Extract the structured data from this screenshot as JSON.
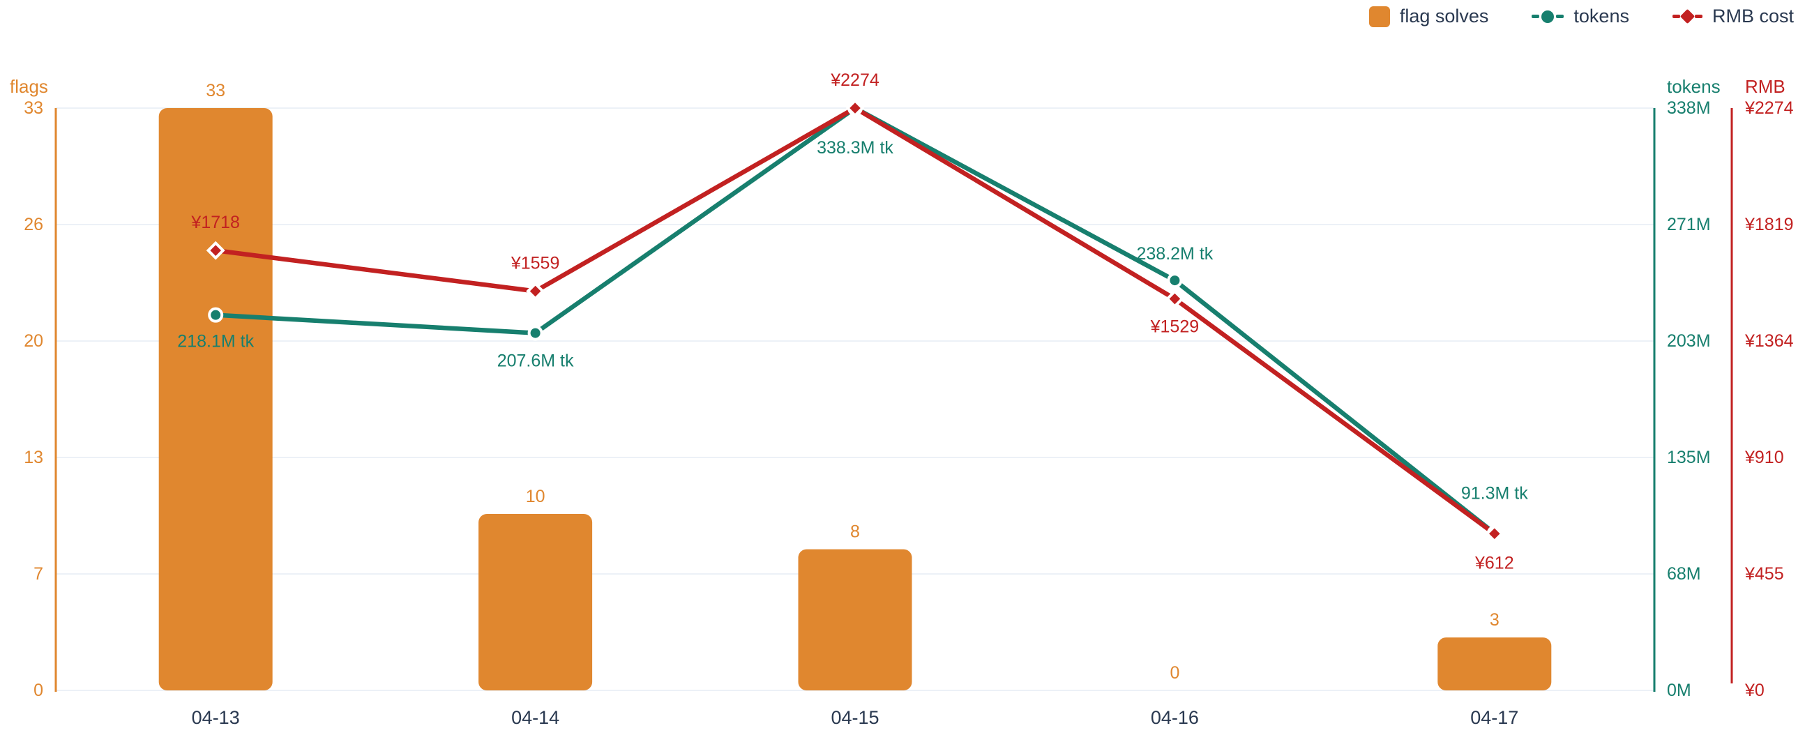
{
  "legend": {
    "items": [
      {
        "label": "flag solves",
        "icon": "bar-swatch-icon"
      },
      {
        "label": "tokens",
        "icon": "line-dot-icon"
      },
      {
        "label": "RMB cost",
        "icon": "line-diamond-icon"
      }
    ]
  },
  "colors": {
    "flags": "#E0872F",
    "tokens": "#177F6E",
    "rmb": "#C22121",
    "axis_text": "#2A3950",
    "grid": "#ECF1F7",
    "marker_ring": "#FFFFFF"
  },
  "chart_data": {
    "type": "bar+line combo, dual right axes",
    "categories": [
      "04-13",
      "04-14",
      "04-15",
      "04-16",
      "04-17"
    ],
    "series": [
      {
        "name": "flag solves",
        "type": "bar",
        "axis": "left",
        "color": "#E0872F",
        "values": [
          33,
          10,
          8,
          0,
          3
        ],
        "labels": [
          "33",
          "10",
          "8",
          "0",
          "3"
        ]
      },
      {
        "name": "tokens",
        "type": "line",
        "marker": "circle",
        "axis": "right_tokens",
        "color": "#177F6E",
        "values": [
          218.1,
          207.6,
          338.3,
          238.2,
          91.3
        ],
        "labels": [
          "218.1M tk",
          "207.6M tk",
          "338.3M tk",
          "238.2M tk",
          "91.3M tk"
        ]
      },
      {
        "name": "RMB cost",
        "type": "line",
        "marker": "diamond",
        "axis": "right_rmb",
        "color": "#C22121",
        "values": [
          1718,
          1559,
          2274,
          1529,
          612
        ],
        "labels": [
          "¥1718",
          "¥1559",
          "¥2274",
          "¥1529",
          "¥612"
        ]
      }
    ],
    "axes": {
      "left": {
        "name": "flags",
        "color": "#E0872F",
        "max": 33,
        "ticks_bottom_to_top": [
          "0",
          "7",
          "13",
          "20",
          "26",
          "33"
        ]
      },
      "right_tokens": {
        "name": "tokens",
        "color": "#177F6E",
        "max": 338.3,
        "ticks_bottom_to_top": [
          "0M",
          "68M",
          "135M",
          "203M",
          "271M",
          "338M"
        ]
      },
      "right_rmb": {
        "name": "RMB",
        "color": "#C22121",
        "max": 2274,
        "ticks_bottom_to_top": [
          "¥0",
          "¥455",
          "¥910",
          "¥1364",
          "¥1819",
          "¥2274"
        ]
      }
    },
    "grid": true,
    "legend_position": "top-right"
  }
}
